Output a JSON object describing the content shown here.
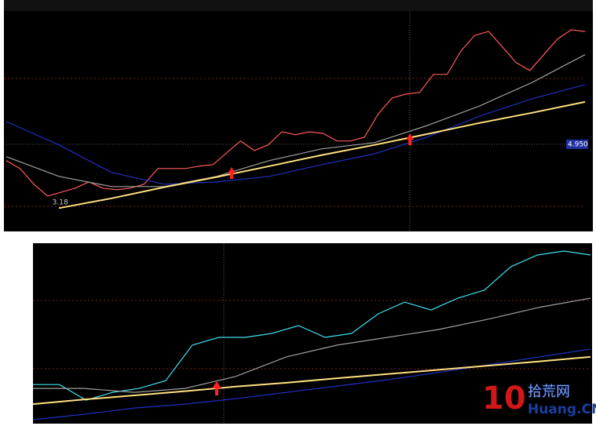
{
  "chart_data": [
    {
      "type": "line",
      "ylim": [
        2.41,
        8.99
      ],
      "yticks": [
        {
          "value": 4.95,
          "label": "4.950"
        }
      ],
      "low_label": "3.18",
      "series": [
        {
          "color": "#ff5a5a",
          "values": [
            4.45,
            4.21,
            3.73,
            3.37,
            3.49,
            3.61,
            3.8,
            3.61,
            3.56,
            3.61,
            3.73,
            4.21,
            4.21,
            4.21,
            4.28,
            4.33,
            4.69,
            5.05,
            4.76,
            4.93,
            5.33,
            5.24,
            5.33,
            5.28,
            5.05,
            5.05,
            5.17,
            5.88,
            6.36,
            6.48,
            6.53,
            7.08,
            7.08,
            7.8,
            8.27,
            8.39,
            7.92,
            7.44,
            7.2,
            7.68,
            8.16,
            8.44,
            8.39
          ]
        },
        {
          "color": "#a0a0a0",
          "values": [
            4.57,
            3.97,
            3.66,
            3.66,
            3.97,
            4.45,
            4.81,
            5.0,
            5.52,
            6.12,
            6.84,
            7.68
          ]
        },
        {
          "color": "#2030c0",
          "values": [
            5.64,
            4.93,
            4.09,
            3.73,
            3.8,
            3.97,
            4.33,
            4.66,
            5.17,
            5.81,
            6.34,
            6.77
          ]
        },
        {
          "color": "#ffe080",
          "values": [
            null,
            3.0,
            3.3,
            3.64,
            3.95,
            4.28,
            4.62,
            4.93,
            5.26,
            5.6,
            5.91,
            6.24
          ]
        }
      ]
    },
    {
      "type": "line",
      "ylim": [
        3.5,
        9.5
      ],
      "series": [
        {
          "color": "#40e0f0",
          "values": [
            4.8,
            4.8,
            4.28,
            4.54,
            4.67,
            4.93,
            6.11,
            6.37,
            6.37,
            6.5,
            6.76,
            6.37,
            6.5,
            7.15,
            7.54,
            7.28,
            7.67,
            7.94,
            8.72,
            9.11,
            9.24,
            9.11
          ]
        },
        {
          "color": "#a0a0a0",
          "values": [
            4.67,
            4.67,
            4.54,
            4.67,
            5.07,
            5.72,
            6.11,
            6.37,
            6.63,
            6.98,
            7.37,
            7.67
          ]
        },
        {
          "color": "#2030c0",
          "values": [
            3.63,
            3.81,
            4.02,
            4.15,
            4.33,
            4.54,
            4.75,
            4.96,
            5.2,
            5.46,
            5.72,
            5.98
          ]
        },
        {
          "color": "#ffe080",
          "values": [
            4.15,
            4.3,
            4.44,
            4.58,
            4.73,
            4.86,
            5.01,
            5.15,
            5.29,
            5.43,
            5.57,
            5.72
          ]
        }
      ]
    }
  ],
  "watermark": {
    "number": "10",
    "site": "拾荒网",
    "domain": "Huang.CN"
  }
}
